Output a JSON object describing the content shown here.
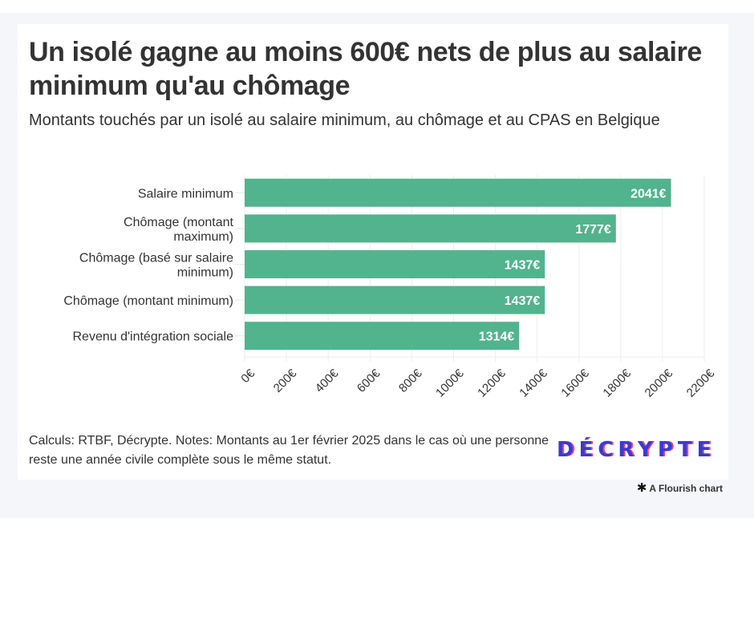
{
  "header": {
    "title": "Un isolé gagne au moins 600€ nets de plus au salaire minimum qu'au chômage",
    "subtitle": "Montants touchés par un isolé au salaire minimum, au chômage et au CPAS en Belgique"
  },
  "footer": {
    "note": "Calculs: RTBF, Décrypte. Notes: Montants au 1er février 2025 dans le cas où une personne reste une année civile complète sous le même statut.",
    "logo_text": "DÉCRYPTE",
    "credit": "A Flourish chart",
    "credit_icon": "flourish-asterisk-icon"
  },
  "colors": {
    "bar": "#52b38f",
    "logo_primary": "#3a3ad6",
    "logo_shadow": "#ef4a72",
    "background": "#f5f6fa"
  },
  "chart_data": {
    "type": "bar",
    "orientation": "horizontal",
    "title": "Un isolé gagne au moins 600€ nets de plus au salaire minimum qu'au chômage",
    "subtitle": "Montants touchés par un isolé au salaire minimum, au chômage et au CPAS en Belgique",
    "categories": [
      [
        "Salaire minimum"
      ],
      [
        "Chômage (montant",
        "maximum)"
      ],
      [
        "Chômage (basé sur salaire",
        "minimum)"
      ],
      [
        "Chômage (montant minimum)"
      ],
      [
        "Revenu d'intégration sociale"
      ]
    ],
    "values": [
      2041,
      1777,
      1437,
      1437,
      1314
    ],
    "value_labels": [
      "2041€",
      "1777€",
      "1437€",
      "1437€",
      "1314€"
    ],
    "xlabel": "",
    "ylabel": "",
    "xlim": [
      0,
      2200
    ],
    "ticks": [
      0,
      200,
      400,
      600,
      800,
      1000,
      1200,
      1400,
      1600,
      1800,
      2000,
      2200
    ],
    "tick_labels": [
      "0€",
      "200€",
      "400€",
      "600€",
      "800€",
      "1000€",
      "1200€",
      "1400€",
      "1600€",
      "1800€",
      "2000€",
      "2200€"
    ],
    "grid": true,
    "legend": "none",
    "unit": "€"
  }
}
